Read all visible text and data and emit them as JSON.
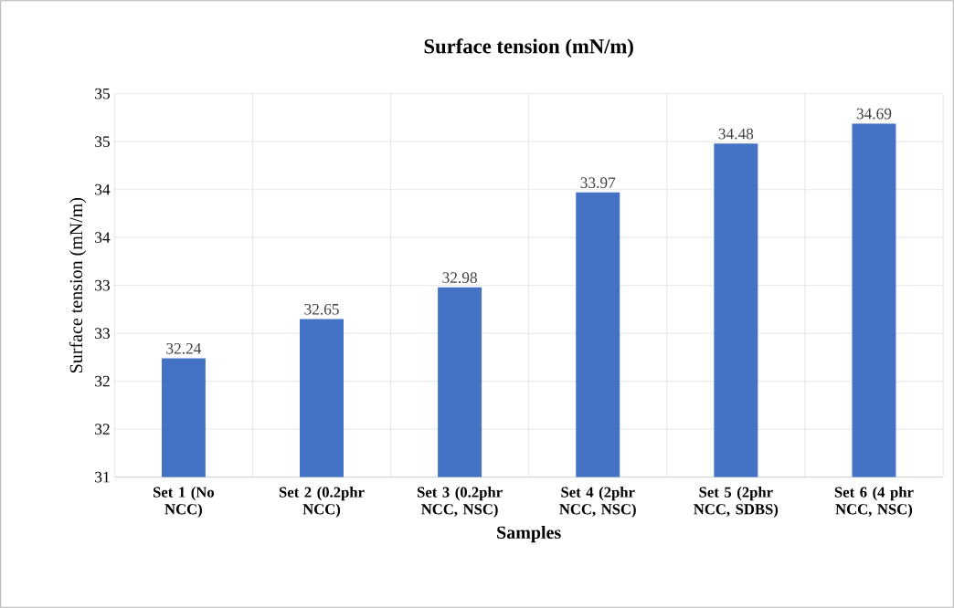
{
  "chart_data": {
    "type": "bar",
    "title": "Surface tension (mN/m)",
    "xlabel": "Samples",
    "ylabel": "Surface tension (mN/m)",
    "categories": [
      "Set 1 (No NCC)",
      "Set 2 (0.2phr NCC)",
      "Set 3 (0.2phr NCC, NSC)",
      "Set 4 (2phr NCC, NSC)",
      "Set 5 (2phr NCC, SDBS)",
      "Set 6 (4 phr NCC, NSC)"
    ],
    "values": [
      32.24,
      32.65,
      32.98,
      33.97,
      34.48,
      34.69
    ],
    "color": "#4472c4",
    "data_labels": true,
    "grid": true,
    "ylim": [
      31,
      35
    ],
    "yticks": [
      {
        "value": 31,
        "label": "31"
      },
      {
        "value": 31.5,
        "label": "32"
      },
      {
        "value": 32,
        "label": "32"
      },
      {
        "value": 32.5,
        "label": "33"
      },
      {
        "value": 33,
        "label": "33"
      },
      {
        "value": 33.5,
        "label": "34"
      },
      {
        "value": 34,
        "label": "34"
      },
      {
        "value": 34.5,
        "label": "35"
      },
      {
        "value": 35,
        "label": "35"
      }
    ]
  }
}
